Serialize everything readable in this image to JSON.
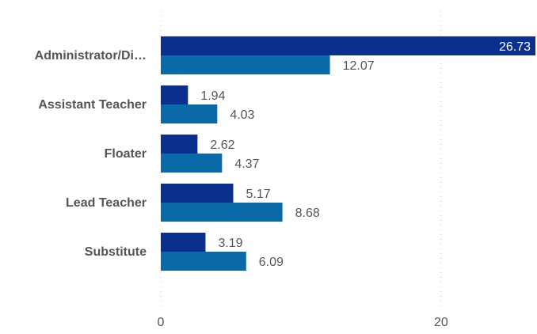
{
  "chart_data": {
    "type": "bar",
    "orientation": "horizontal",
    "categories": [
      "Administrator/Di…",
      "Assistant Teacher",
      "Floater",
      "Lead Teacher",
      "Substitute"
    ],
    "series": [
      {
        "values": [
          26.73,
          1.94,
          2.62,
          5.17,
          3.19
        ]
      },
      {
        "values": [
          12.07,
          4.03,
          4.37,
          8.68,
          6.09
        ]
      }
    ],
    "xlim": [
      0,
      26.73
    ],
    "x_ticks": [
      "0",
      "20"
    ],
    "grid": "vertical dotted",
    "colors": {
      "series_1": "#0a2f8c",
      "series_2": "#0a6aa8",
      "label_outside": "#555555",
      "label_inside": "#ffffff"
    }
  }
}
